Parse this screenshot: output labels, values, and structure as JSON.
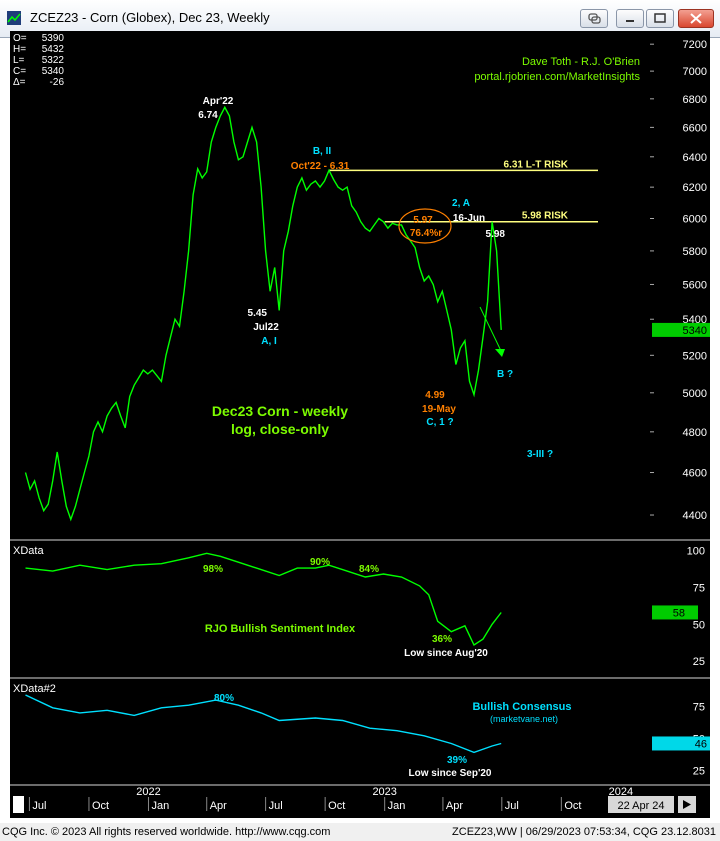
{
  "window": {
    "title": "ZCEZ23 - Corn (Globex), Dec 23, Weekly",
    "buttons": [
      "link-icon",
      "minimize-icon",
      "maximize-icon",
      "close-icon"
    ]
  },
  "status_bar": {
    "left": "CQG Inc. © 2023 All rights reserved worldwide. http://www.cqg.com",
    "right": "ZCEZ23,WW | 06/29/2023 07:53:34, CQG 23.12.8031"
  },
  "colors": {
    "background": "#000000",
    "price_line": "#00ff00",
    "resistance": "#ffff80",
    "label_orange": "#ff8000",
    "label_cyan": "#00e0ff",
    "label_green": "#7cfc00",
    "label_white": "#ffffff",
    "sentiment_line": "#00ff00",
    "consensus_line": "#00e0ff"
  },
  "ohlc": [
    {
      "label": "O=",
      "value": "5390"
    },
    {
      "label": "H=",
      "value": "5432"
    },
    {
      "label": "L=",
      "value": "5322"
    },
    {
      "label": "C=",
      "value": "5340"
    },
    {
      "label": "Δ=",
      "value": "-26"
    }
  ],
  "credits": [
    "Dave Toth - R.J. O'Brien",
    "portal.rjobrien.com/MarketInsights"
  ],
  "chart_data": {
    "type": "line",
    "x_axis": {
      "ticks": [
        "Jul",
        "Oct",
        "2022",
        "Jan",
        "Apr",
        "Jul",
        "Oct",
        "2023",
        "Jan",
        "Apr",
        "Jul",
        "Oct",
        "2024",
        "Jan"
      ],
      "range_text": "22 Apr 24"
    },
    "panels": [
      {
        "name": "price",
        "title": "Dec23 Corn - weekly",
        "subtitle": "log, close-only",
        "scale": "log",
        "ylim": [
          4300,
          7300
        ],
        "y_ticks": [
          4400,
          4600,
          4800,
          5000,
          5200,
          5400,
          5600,
          5800,
          6000,
          6200,
          6400,
          6600,
          6800,
          7000,
          7200
        ],
        "last_value": "5340",
        "series": [
          {
            "points": [
              [
                "2021-06-25",
                4600
              ],
              [
                "2021-07-02",
                4520
              ],
              [
                "2021-07-09",
                4560
              ],
              [
                "2021-07-16",
                4480
              ],
              [
                "2021-07-23",
                4420
              ],
              [
                "2021-07-30",
                4450
              ],
              [
                "2021-08-06",
                4560
              ],
              [
                "2021-08-13",
                4700
              ],
              [
                "2021-08-20",
                4560
              ],
              [
                "2021-08-27",
                4440
              ],
              [
                "2021-09-03",
                4380
              ],
              [
                "2021-09-10",
                4440
              ],
              [
                "2021-09-17",
                4520
              ],
              [
                "2021-09-24",
                4600
              ],
              [
                "2021-10-01",
                4680
              ],
              [
                "2021-10-08",
                4800
              ],
              [
                "2021-10-15",
                4850
              ],
              [
                "2021-10-22",
                4800
              ],
              [
                "2021-10-29",
                4880
              ],
              [
                "2021-11-05",
                4920
              ],
              [
                "2021-11-12",
                4950
              ],
              [
                "2021-11-19",
                4880
              ],
              [
                "2021-11-26",
                4820
              ],
              [
                "2021-12-03",
                4980
              ],
              [
                "2021-12-10",
                5040
              ],
              [
                "2021-12-17",
                5080
              ],
              [
                "2021-12-24",
                5120
              ],
              [
                "2021-12-31",
                5100
              ],
              [
                "2022-01-07",
                5120
              ],
              [
                "2022-01-14",
                5090
              ],
              [
                "2022-01-21",
                5060
              ],
              [
                "2022-01-28",
                5200
              ],
              [
                "2022-02-04",
                5300
              ],
              [
                "2022-02-11",
                5400
              ],
              [
                "2022-02-18",
                5360
              ],
              [
                "2022-02-25",
                5560
              ],
              [
                "2022-03-04",
                5800
              ],
              [
                "2022-03-11",
                6150
              ],
              [
                "2022-03-18",
                6320
              ],
              [
                "2022-03-25",
                6260
              ],
              [
                "2022-04-01",
                6300
              ],
              [
                "2022-04-08",
                6500
              ],
              [
                "2022-04-15",
                6600
              ],
              [
                "2022-04-22",
                6680
              ],
              [
                "2022-04-29",
                6740
              ],
              [
                "2022-05-06",
                6680
              ],
              [
                "2022-05-13",
                6500
              ],
              [
                "2022-05-20",
                6380
              ],
              [
                "2022-05-27",
                6400
              ],
              [
                "2022-06-03",
                6500
              ],
              [
                "2022-06-10",
                6600
              ],
              [
                "2022-06-17",
                6500
              ],
              [
                "2022-06-24",
                6200
              ],
              [
                "2022-07-01",
                5800
              ],
              [
                "2022-07-08",
                5560
              ],
              [
                "2022-07-15",
                5700
              ],
              [
                "2022-07-22",
                5450
              ],
              [
                "2022-07-29",
                5800
              ],
              [
                "2022-08-05",
                5920
              ],
              [
                "2022-08-12",
                6080
              ],
              [
                "2022-08-19",
                6200
              ],
              [
                "2022-08-26",
                6260
              ],
              [
                "2022-09-02",
                6180
              ],
              [
                "2022-09-09",
                6220
              ],
              [
                "2022-09-16",
                6240
              ],
              [
                "2022-09-23",
                6200
              ],
              [
                "2022-09-30",
                6240
              ],
              [
                "2022-10-07",
                6310
              ],
              [
                "2022-10-14",
                6250
              ],
              [
                "2022-10-21",
                6200
              ],
              [
                "2022-10-28",
                6180
              ],
              [
                "2022-11-04",
                6200
              ],
              [
                "2022-11-11",
                6080
              ],
              [
                "2022-11-18",
                6040
              ],
              [
                "2022-11-25",
                5980
              ],
              [
                "2022-12-02",
                5940
              ],
              [
                "2022-12-09",
                5920
              ],
              [
                "2022-12-16",
                5960
              ],
              [
                "2022-12-23",
                6000
              ],
              [
                "2022-12-30",
                5980
              ],
              [
                "2023-01-06",
                5940
              ],
              [
                "2023-01-13",
                5970
              ],
              [
                "2023-01-20",
                5960
              ],
              [
                "2023-01-27",
                5960
              ],
              [
                "2023-02-03",
                5900
              ],
              [
                "2023-02-10",
                5860
              ],
              [
                "2023-02-17",
                5820
              ],
              [
                "2023-02-24",
                5700
              ],
              [
                "2023-03-03",
                5620
              ],
              [
                "2023-03-10",
                5650
              ],
              [
                "2023-03-17",
                5600
              ],
              [
                "2023-03-24",
                5500
              ],
              [
                "2023-03-31",
                5560
              ],
              [
                "2023-04-07",
                5450
              ],
              [
                "2023-04-14",
                5340
              ],
              [
                "2023-04-21",
                5150
              ],
              [
                "2023-04-28",
                5240
              ],
              [
                "2023-05-05",
                5280
              ],
              [
                "2023-05-12",
                5060
              ],
              [
                "2023-05-19",
                4990
              ],
              [
                "2023-05-26",
                5120
              ],
              [
                "2023-06-02",
                5300
              ],
              [
                "2023-06-09",
                5500
              ],
              [
                "2023-06-16",
                5980
              ],
              [
                "2023-06-23",
                5800
              ],
              [
                "2023-06-30",
                5340
              ]
            ]
          }
        ],
        "annotations": [
          {
            "text": "Apr'22",
            "color": "label_white"
          },
          {
            "text": "6.74",
            "color": "label_white"
          },
          {
            "text": "B, II",
            "color": "label_cyan"
          },
          {
            "text": "Oct'22 - 6.31",
            "color": "label_orange"
          },
          {
            "text": "5.45",
            "color": "label_white"
          },
          {
            "text": "Jul22",
            "color": "label_white"
          },
          {
            "text": "A, I",
            "color": "label_cyan"
          },
          {
            "text": "5.97",
            "color": "label_orange"
          },
          {
            "text": "76.4%r",
            "color": "label_orange"
          },
          {
            "text": "2, A",
            "color": "label_cyan"
          },
          {
            "text": "16-Jun",
            "color": "label_white"
          },
          {
            "text": "5.98",
            "color": "label_white"
          },
          {
            "text": "4.99",
            "color": "label_orange"
          },
          {
            "text": "19-May",
            "color": "label_orange"
          },
          {
            "text": "C, 1 ?",
            "color": "label_cyan"
          },
          {
            "text": "B ?",
            "color": "label_cyan"
          },
          {
            "text": "3-III ?",
            "color": "label_cyan"
          }
        ],
        "levels": [
          {
            "value": 6310,
            "label": "6.31 L-T RISK",
            "color": "resistance"
          },
          {
            "value": 5980,
            "label": "5.98 RISK",
            "color": "resistance"
          }
        ]
      },
      {
        "name": "sentiment",
        "header": "XData",
        "title": "RJO Bullish Sentiment Index",
        "ylim": [
          15,
          105
        ],
        "y_ticks": [
          25,
          50,
          75,
          100
        ],
        "last_value": "58",
        "last_value_suffix": "6",
        "labels": [
          "98%",
          "90%",
          "84%",
          "36%",
          "Low since Aug'20"
        ],
        "series": [
          {
            "points": [
              [
                "2021-06-25",
                88
              ],
              [
                "2021-08-06",
                86
              ],
              [
                "2021-09-17",
                90
              ],
              [
                "2021-10-29",
                87
              ],
              [
                "2021-12-10",
                90
              ],
              [
                "2022-01-21",
                91
              ],
              [
                "2022-03-04",
                95
              ],
              [
                "2022-04-01",
                98
              ],
              [
                "2022-04-22",
                96
              ],
              [
                "2022-05-20",
                92
              ],
              [
                "2022-06-24",
                87
              ],
              [
                "2022-07-22",
                83
              ],
              [
                "2022-08-19",
                88
              ],
              [
                "2022-09-16",
                88
              ],
              [
                "2022-10-07",
                90
              ],
              [
                "2022-11-04",
                86
              ],
              [
                "2022-12-02",
                82
              ],
              [
                "2022-12-30",
                84
              ],
              [
                "2023-01-27",
                82
              ],
              [
                "2023-02-24",
                76
              ],
              [
                "2023-03-10",
                70
              ],
              [
                "2023-03-24",
                52
              ],
              [
                "2023-04-14",
                45
              ],
              [
                "2023-05-05",
                49
              ],
              [
                "2023-05-19",
                36
              ],
              [
                "2023-06-02",
                40
              ],
              [
                "2023-06-16",
                50
              ],
              [
                "2023-06-30",
                58
              ]
            ]
          }
        ]
      },
      {
        "name": "consensus",
        "header": "XData#2",
        "title": "Bullish Consensus",
        "subtitle": "(marketvane.net)",
        "ylim": [
          15,
          95
        ],
        "y_ticks": [
          25,
          50,
          75
        ],
        "last_value": "46",
        "labels": [
          "80%",
          "39%",
          "Low since Sep'20"
        ],
        "series": [
          {
            "points": [
              [
                "2021-06-25",
                84
              ],
              [
                "2021-08-06",
                74
              ],
              [
                "2021-09-17",
                70
              ],
              [
                "2021-10-29",
                72
              ],
              [
                "2021-12-10",
                68
              ],
              [
                "2022-01-21",
                74
              ],
              [
                "2022-03-04",
                76
              ],
              [
                "2022-04-15",
                80
              ],
              [
                "2022-05-20",
                76
              ],
              [
                "2022-06-24",
                70
              ],
              [
                "2022-07-22",
                64
              ],
              [
                "2022-09-16",
                66
              ],
              [
                "2022-10-28",
                64
              ],
              [
                "2022-12-09",
                58
              ],
              [
                "2023-01-20",
                56
              ],
              [
                "2023-03-03",
                52
              ],
              [
                "2023-04-14",
                46
              ],
              [
                "2023-05-19",
                39
              ],
              [
                "2023-06-16",
                44
              ],
              [
                "2023-06-30",
                46
              ]
            ]
          }
        ]
      }
    ]
  }
}
